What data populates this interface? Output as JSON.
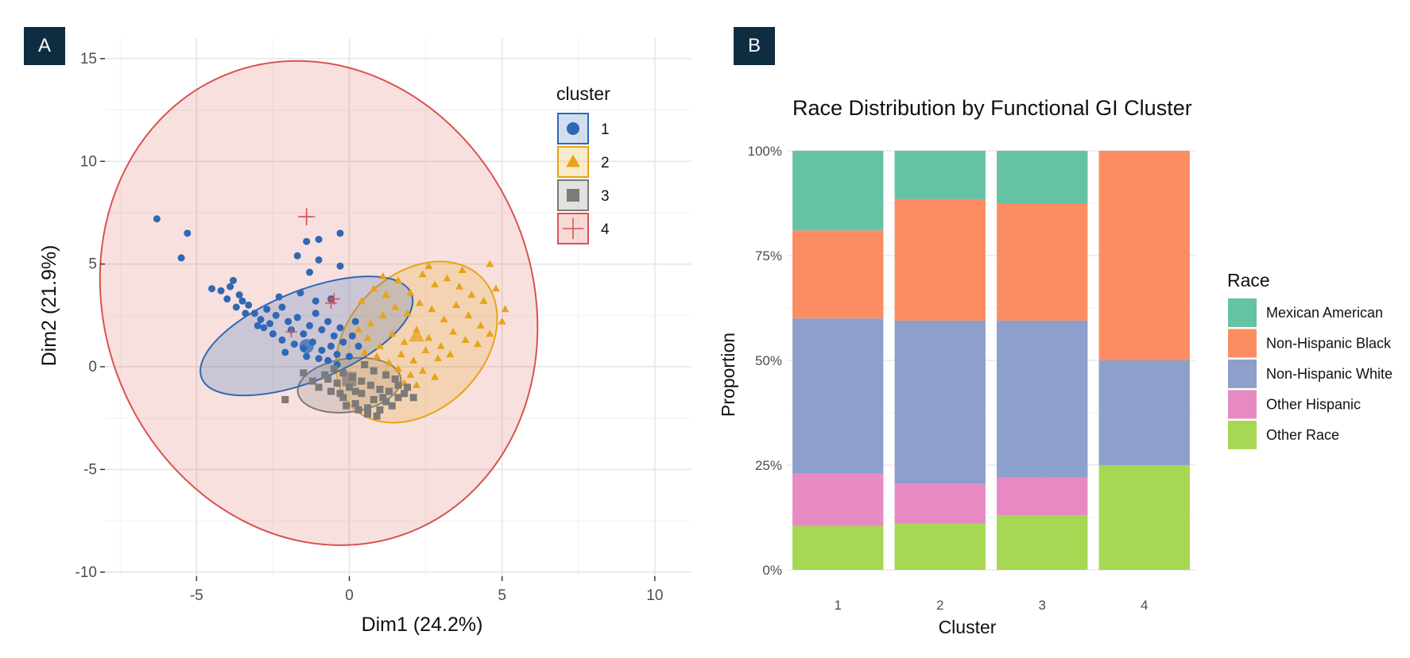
{
  "chart_data": [
    {
      "panel_label": "A",
      "type": "scatter",
      "title": "",
      "xlabel": "Dim1 (24.2%)",
      "ylabel": "Dim2 (21.9%)",
      "xlim": [
        -8,
        11.2
      ],
      "ylim": [
        -10.2,
        16
      ],
      "xticks": [
        -5,
        0,
        5,
        10
      ],
      "yticks": [
        -10,
        -5,
        0,
        5,
        10,
        15
      ],
      "grid": true,
      "legend_title": "cluster",
      "legend_position": "top-right",
      "series": [
        {
          "name": "1",
          "color": "#2f68b5",
          "marker": "circle",
          "center": [
            -1.4,
            1.0
          ],
          "ellipse": {
            "cx": -1.4,
            "cy": 1.5,
            "rx": 3.7,
            "ry": 2.2,
            "angle": -22
          },
          "points": [
            [
              -6.3,
              7.2
            ],
            [
              -5.3,
              6.5
            ],
            [
              -5.5,
              5.3
            ],
            [
              -4.5,
              3.8
            ],
            [
              -4.2,
              3.7
            ],
            [
              -3.9,
              3.9
            ],
            [
              -3.8,
              4.2
            ],
            [
              -3.6,
              3.5
            ],
            [
              -3.5,
              3.2
            ],
            [
              -3.3,
              3.0
            ],
            [
              -3.4,
              2.6
            ],
            [
              -3.1,
              2.6
            ],
            [
              -2.9,
              2.3
            ],
            [
              -2.7,
              2.8
            ],
            [
              -2.6,
              2.1
            ],
            [
              -2.4,
              2.5
            ],
            [
              -2.2,
              2.9
            ],
            [
              -2.0,
              2.2
            ],
            [
              -2.8,
              1.9
            ],
            [
              -2.5,
              1.6
            ],
            [
              -2.2,
              1.3
            ],
            [
              -1.9,
              1.8
            ],
            [
              -1.7,
              2.4
            ],
            [
              -1.5,
              1.6
            ],
            [
              -1.3,
              2.0
            ],
            [
              -1.1,
              2.6
            ],
            [
              -0.9,
              1.8
            ],
            [
              -0.7,
              2.2
            ],
            [
              -0.5,
              1.5
            ],
            [
              -0.3,
              1.9
            ],
            [
              -1.8,
              1.1
            ],
            [
              -1.5,
              0.9
            ],
            [
              -1.2,
              1.2
            ],
            [
              -0.9,
              0.8
            ],
            [
              -0.6,
              1.0
            ],
            [
              -0.4,
              0.6
            ],
            [
              -0.2,
              1.2
            ],
            [
              0.1,
              1.5
            ],
            [
              0.3,
              1.0
            ],
            [
              -1.0,
              0.4
            ],
            [
              -0.7,
              0.3
            ],
            [
              -0.4,
              0.1
            ],
            [
              -2.3,
              3.4
            ],
            [
              -1.6,
              3.6
            ],
            [
              -1.1,
              3.2
            ],
            [
              -0.6,
              3.3
            ],
            [
              -1.3,
              4.6
            ],
            [
              -1.4,
              6.1
            ],
            [
              -1.0,
              5.2
            ],
            [
              -1.0,
              6.2
            ],
            [
              -0.3,
              6.5
            ],
            [
              -0.3,
              4.9
            ],
            [
              -1.7,
              5.4
            ],
            [
              -2.1,
              0.7
            ],
            [
              -1.4,
              0.5
            ],
            [
              0.0,
              0.5
            ],
            [
              0.2,
              2.2
            ],
            [
              -3.0,
              2.0
            ],
            [
              -3.7,
              2.9
            ],
            [
              -4.0,
              3.3
            ]
          ]
        },
        {
          "name": "2",
          "color": "#e8a317",
          "marker": "triangle",
          "center": [
            2.2,
            1.5
          ],
          "ellipse": {
            "cx": 2.2,
            "cy": 1.2,
            "rx": 3.0,
            "ry": 3.3,
            "angle": -45
          },
          "points": [
            [
              0.4,
              3.2
            ],
            [
              0.8,
              3.8
            ],
            [
              1.2,
              3.5
            ],
            [
              1.6,
              4.2
            ],
            [
              2.0,
              3.6
            ],
            [
              2.4,
              4.5
            ],
            [
              2.8,
              4.0
            ],
            [
              3.2,
              4.3
            ],
            [
              3.6,
              3.9
            ],
            [
              4.0,
              3.5
            ],
            [
              4.4,
              3.2
            ],
            [
              4.6,
              5.0
            ],
            [
              5.1,
              2.8
            ],
            [
              5.0,
              2.2
            ],
            [
              4.6,
              1.6
            ],
            [
              4.2,
              1.1
            ],
            [
              3.9,
              2.5
            ],
            [
              3.5,
              3.0
            ],
            [
              3.1,
              2.3
            ],
            [
              2.7,
              2.8
            ],
            [
              2.3,
              3.1
            ],
            [
              1.9,
              2.6
            ],
            [
              1.5,
              2.9
            ],
            [
              1.1,
              2.5
            ],
            [
              0.7,
              2.1
            ],
            [
              0.3,
              1.8
            ],
            [
              0.6,
              1.4
            ],
            [
              1.0,
              1.0
            ],
            [
              1.4,
              1.6
            ],
            [
              1.8,
              1.2
            ],
            [
              2.2,
              1.8
            ],
            [
              2.6,
              1.4
            ],
            [
              3.0,
              1.0
            ],
            [
              3.4,
              1.7
            ],
            [
              3.8,
              1.3
            ],
            [
              4.3,
              2.0
            ],
            [
              0.9,
              0.5
            ],
            [
              1.3,
              0.2
            ],
            [
              1.7,
              0.6
            ],
            [
              2.1,
              0.3
            ],
            [
              2.5,
              0.8
            ],
            [
              2.9,
              0.4
            ],
            [
              3.3,
              0.6
            ],
            [
              1.2,
              -0.3
            ],
            [
              1.6,
              -0.1
            ],
            [
              2.0,
              -0.4
            ],
            [
              2.4,
              -0.2
            ],
            [
              2.8,
              -0.5
            ],
            [
              1.8,
              -0.8
            ],
            [
              2.2,
              -0.9
            ],
            [
              0.5,
              0.7
            ],
            [
              3.7,
              4.7
            ],
            [
              2.6,
              4.9
            ],
            [
              1.1,
              4.4
            ],
            [
              4.8,
              3.8
            ]
          ]
        },
        {
          "name": "3",
          "color": "#7d7a78",
          "marker": "square",
          "center": [
            0.0,
            -0.6
          ],
          "ellipse": {
            "cx": 0.0,
            "cy": -0.9,
            "rx": 1.7,
            "ry": 1.3,
            "angle": -8
          },
          "points": [
            [
              -2.1,
              -1.6
            ],
            [
              -1.5,
              -0.3
            ],
            [
              -1.2,
              -0.7
            ],
            [
              -1.0,
              -1.0
            ],
            [
              -0.8,
              -0.4
            ],
            [
              -0.6,
              -1.2
            ],
            [
              -0.4,
              -0.8
            ],
            [
              -0.2,
              -1.5
            ],
            [
              0.0,
              -1.0
            ],
            [
              0.2,
              -1.8
            ],
            [
              0.4,
              -1.3
            ],
            [
              0.6,
              -2.0
            ],
            [
              0.8,
              -1.6
            ],
            [
              1.0,
              -2.1
            ],
            [
              1.2,
              -1.7
            ],
            [
              1.4,
              -1.9
            ],
            [
              1.6,
              -1.5
            ],
            [
              1.8,
              -1.3
            ],
            [
              -0.5,
              -0.1
            ],
            [
              -0.2,
              -0.3
            ],
            [
              0.1,
              -0.5
            ],
            [
              0.4,
              -0.7
            ],
            [
              0.7,
              -0.9
            ],
            [
              1.0,
              -1.1
            ],
            [
              1.3,
              -1.2
            ],
            [
              1.6,
              -0.9
            ],
            [
              1.9,
              -1.0
            ],
            [
              2.1,
              -1.5
            ],
            [
              0.9,
              -2.4
            ],
            [
              0.6,
              -2.3
            ],
            [
              0.3,
              -2.1
            ],
            [
              -0.1,
              -1.9
            ],
            [
              -0.3,
              -1.3
            ],
            [
              0.5,
              0.1
            ],
            [
              0.8,
              -0.2
            ],
            [
              1.2,
              -0.4
            ],
            [
              1.5,
              -0.6
            ],
            [
              1.1,
              -1.5
            ],
            [
              0.2,
              -1.2
            ],
            [
              -0.7,
              -0.6
            ]
          ]
        },
        {
          "name": "4",
          "color": "#d9534f",
          "marker": "cross",
          "center": [
            -1.4,
            7.3
          ],
          "ellipse": {
            "cx": -1.0,
            "cy": 3.1,
            "rx": 7.0,
            "ry": 12.0,
            "angle": -22
          },
          "points": [
            [
              -1.4,
              7.3
            ],
            [
              -0.6,
              3.1
            ],
            [
              -0.5,
              3.3
            ],
            [
              -1.9,
              1.7
            ]
          ]
        }
      ]
    },
    {
      "panel_label": "B",
      "type": "bar",
      "stacked": true,
      "title": "Race Distribution by Functional GI Cluster",
      "xlabel": "Cluster",
      "ylabel": "Proportion",
      "categories": [
        "1",
        "2",
        "3",
        "4"
      ],
      "ylim": [
        0,
        1
      ],
      "yticks": [
        0,
        0.25,
        0.5,
        0.75,
        1.0
      ],
      "ytick_labels": [
        "0%",
        "25%",
        "50%",
        "75%",
        "100%"
      ],
      "grid": true,
      "legend_title": "Race",
      "legend_position": "right",
      "series": [
        {
          "name": "Other Race",
          "color": "#a6d854",
          "values": [
            0.105,
            0.11,
            0.13,
            0.25
          ]
        },
        {
          "name": "Other Hispanic",
          "color": "#e78ac3",
          "values": [
            0.125,
            0.095,
            0.09,
            0.0
          ]
        },
        {
          "name": "Non-Hispanic White",
          "color": "#8da0cb",
          "values": [
            0.37,
            0.39,
            0.375,
            0.25
          ]
        },
        {
          "name": "Non-Hispanic Black",
          "color": "#fc8d62",
          "values": [
            0.21,
            0.29,
            0.28,
            0.5
          ]
        },
        {
          "name": "Mexican American",
          "color": "#66c2a5",
          "values": [
            0.19,
            0.115,
            0.125,
            0.0
          ]
        }
      ],
      "legend_order": [
        "Mexican American",
        "Non-Hispanic Black",
        "Non-Hispanic White",
        "Other Hispanic",
        "Other Race"
      ]
    }
  ]
}
